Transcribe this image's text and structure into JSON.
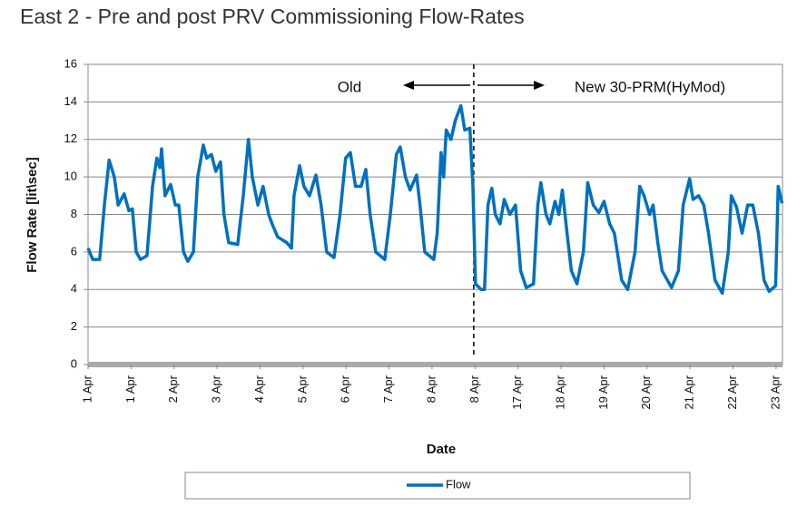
{
  "chart_data": {
    "type": "line",
    "title": "East 2 - Pre and post PRV Commissioning Flow-Rates",
    "x_label": "Date",
    "y_label": "Flow Rate [lit\\sec]",
    "annotations": {
      "left": "Old",
      "right": "New 30-PRM(HyMod)",
      "divider": 8.97
    },
    "xlim": [
      0,
      16.15
    ],
    "xticks": [
      {
        "value": 0,
        "label": "1 Apr"
      },
      {
        "value": 1,
        "label": "1 Apr"
      },
      {
        "value": 2,
        "label": "2 Apr"
      },
      {
        "value": 3,
        "label": "3 Apr"
      },
      {
        "value": 4,
        "label": "4 Apr"
      },
      {
        "value": 5,
        "label": "5 Apr"
      },
      {
        "value": 6,
        "label": "6 Apr"
      },
      {
        "value": 7,
        "label": "7 Apr"
      },
      {
        "value": 8,
        "label": "8 Apr"
      },
      {
        "value": 9,
        "label": "8 Apr"
      },
      {
        "value": 10,
        "label": "17 Apr"
      },
      {
        "value": 11,
        "label": "18 Apr"
      },
      {
        "value": 12,
        "label": "19 Apr"
      },
      {
        "value": 13,
        "label": "20 Apr"
      },
      {
        "value": 14,
        "label": "21 Apr"
      },
      {
        "value": 15,
        "label": "22 Apr"
      },
      {
        "value": 16,
        "label": "23 Apr"
      }
    ],
    "ylim": [
      0,
      16
    ],
    "yticks": [
      0,
      2,
      4,
      6,
      8,
      10,
      12,
      14,
      16
    ],
    "grid": true,
    "legend": "bottom",
    "series": [
      {
        "name": "Flow",
        "color": "#0070c0",
        "x": [
          0,
          0.11,
          0.27,
          0.38,
          0.49,
          0.61,
          0.7,
          0.84,
          0.95,
          1.03,
          1.12,
          1.22,
          1.37,
          1.5,
          1.6,
          1.67,
          1.71,
          1.79,
          1.92,
          2.03,
          2.11,
          2.22,
          2.32,
          2.45,
          2.55,
          2.68,
          2.76,
          2.87,
          2.97,
          3.08,
          3.16,
          3.27,
          3.48,
          3.61,
          3.73,
          3.82,
          3.95,
          4.07,
          4.2,
          4.28,
          4.41,
          4.62,
          4.73,
          4.79,
          4.92,
          5.02,
          5.15,
          5.3,
          5.42,
          5.55,
          5.72,
          5.86,
          5.99,
          6.1,
          6.22,
          6.35,
          6.46,
          6.56,
          6.69,
          6.9,
          7.03,
          7.17,
          7.26,
          7.38,
          7.49,
          7.64,
          7.72,
          7.83,
          8.04,
          8.12,
          8.21,
          8.27,
          8.33,
          8.44,
          8.54,
          8.67,
          8.76,
          8.88,
          8.95,
          9.01,
          9.14,
          9.22,
          9.3,
          9.39,
          9.47,
          9.58,
          9.68,
          9.81,
          9.94,
          10.06,
          10.19,
          10.36,
          10.46,
          10.53,
          10.65,
          10.74,
          10.86,
          10.95,
          11.03,
          11.14,
          11.24,
          11.37,
          11.52,
          11.62,
          11.75,
          11.88,
          12.0,
          12.13,
          12.24,
          12.41,
          12.55,
          12.72,
          12.83,
          12.93,
          13.06,
          13.14,
          13.25,
          13.35,
          13.57,
          13.73,
          13.84,
          13.99,
          14.07,
          14.2,
          14.32,
          14.43,
          14.58,
          14.75,
          14.89,
          14.96,
          15.08,
          15.21,
          15.34,
          15.46,
          15.59,
          15.72,
          15.84,
          15.99,
          16.05,
          16.14
        ],
        "values": [
          6.2,
          5.6,
          5.6,
          8.5,
          10.9,
          10,
          8.5,
          9.1,
          8.2,
          8.3,
          6,
          5.6,
          5.8,
          9.5,
          11,
          10.5,
          11.5,
          9,
          9.6,
          8.5,
          8.5,
          6,
          5.5,
          6,
          10,
          11.7,
          11,
          11.2,
          10.3,
          10.8,
          8,
          6.5,
          6.4,
          9,
          12,
          10,
          8.5,
          9.5,
          8,
          7.5,
          6.8,
          6.5,
          6.2,
          9,
          10.6,
          9.5,
          9,
          10.1,
          8.5,
          6,
          5.7,
          8,
          11,
          11.3,
          9.5,
          9.5,
          10.4,
          8,
          6,
          5.6,
          8,
          11.2,
          11.6,
          10,
          9.3,
          10.1,
          8.5,
          6,
          5.6,
          7,
          11.3,
          10,
          12.5,
          12,
          13,
          13.8,
          12.5,
          12.6,
          9.5,
          4.3,
          4,
          4,
          8.5,
          9.4,
          8,
          7.5,
          8.8,
          8,
          8.5,
          5,
          4.1,
          4.3,
          8.5,
          9.7,
          8,
          7.5,
          8.7,
          8,
          9.3,
          7,
          5,
          4.3,
          6,
          9.7,
          8.5,
          8.1,
          8.7,
          7.5,
          7,
          4.5,
          4,
          6,
          9.5,
          9,
          8,
          8.5,
          6.5,
          5,
          4.1,
          5,
          8.5,
          9.9,
          8.8,
          9,
          8.5,
          7,
          4.5,
          3.8,
          6,
          9,
          8.4,
          7,
          8.5,
          8.5,
          7,
          4.5,
          3.9,
          4.2,
          9.5,
          8.6
        ]
      }
    ]
  }
}
